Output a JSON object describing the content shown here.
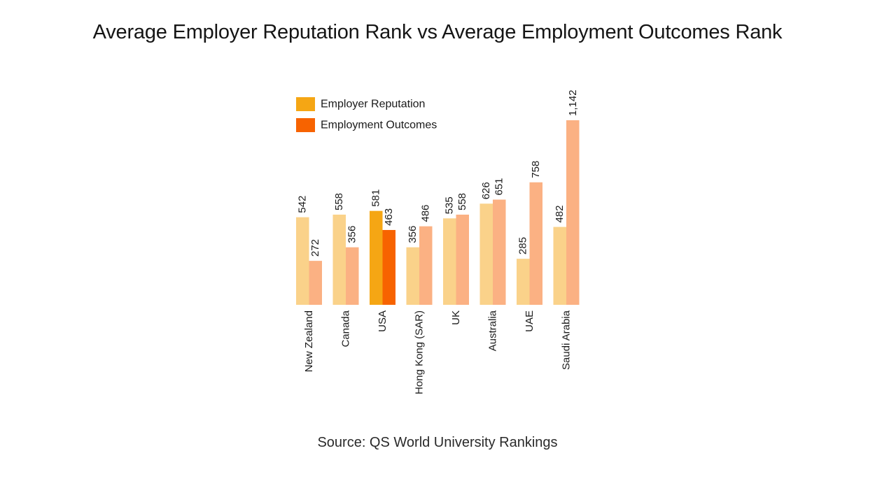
{
  "title": "Average Employer Reputation Rank vs Average Employment Outcomes Rank",
  "source": "Source: QS World University Rankings",
  "colors": {
    "employer_reputation": "#F5A614",
    "employment_outcomes": "#F76300",
    "employer_reputation_muted": "#FAD28A",
    "employment_outcomes_muted": "#FBB183",
    "highlight_category": "USA"
  },
  "chart_data": {
    "type": "bar",
    "title": "Average Employer Reputation Rank vs Average Employment Outcomes Rank",
    "xlabel": "",
    "ylabel": "",
    "categories": [
      "New Zealand",
      "Canada",
      "USA",
      "Hong Kong (SAR)",
      "UK",
      "Australia",
      "UAE",
      "Saudi Arabia"
    ],
    "series": [
      {
        "name": "Employer Reputation",
        "values": [
          542,
          558,
          581,
          356,
          535,
          626,
          285,
          482
        ],
        "labels": [
          "542",
          "558",
          "581",
          "356",
          "535",
          "626",
          "285",
          "482"
        ]
      },
      {
        "name": "Employment Outcomes",
        "values": [
          272,
          356,
          463,
          486,
          558,
          651,
          758,
          1142
        ],
        "labels": [
          "272",
          "356",
          "463",
          "486",
          "558",
          "651",
          "758",
          "1,142"
        ]
      }
    ],
    "ylim": [
      0,
      1142
    ],
    "grid": false,
    "legend": "top-left"
  }
}
